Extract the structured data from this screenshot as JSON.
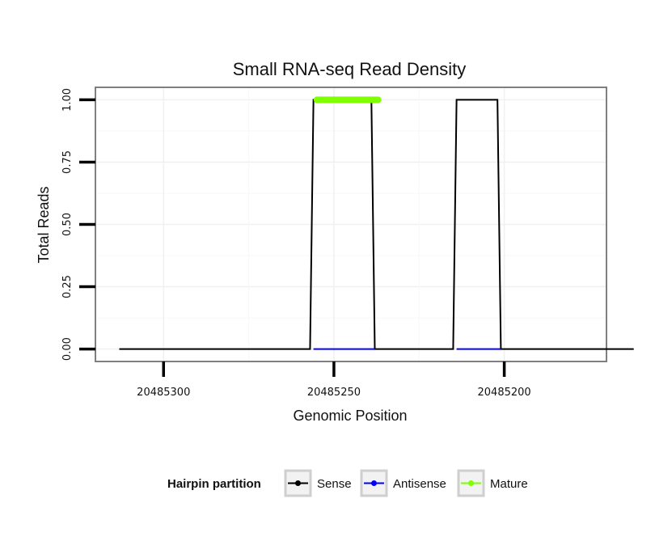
{
  "chart_data": {
    "type": "line",
    "title": "Small RNA-seq Read Density",
    "xlabel": "Genomic Position",
    "ylabel": "Total Reads",
    "x_reversed": true,
    "xlim": [
      20485320,
      20485170
    ],
    "ylim": [
      -0.05,
      1.05
    ],
    "x_ticks": [
      20485300,
      20485250,
      20485200
    ],
    "x_tick_labels": [
      "20485300",
      "20485250",
      "20485200"
    ],
    "y_ticks": [
      0.0,
      0.25,
      0.5,
      0.75,
      1.0
    ],
    "y_tick_labels": [
      "0.00",
      "0.25",
      "0.50",
      "0.75",
      "1.00"
    ],
    "grid": true,
    "legend": {
      "title": "Hairpin partition",
      "position": "bottom",
      "entries": [
        "Sense",
        "Antisense",
        "Mature"
      ]
    },
    "series": [
      {
        "name": "Sense",
        "color": "#000000",
        "x": [
          20485313,
          20485257,
          20485256,
          20485239,
          20485238,
          20485215,
          20485214,
          20485202,
          20485201,
          20485162
        ],
        "y": [
          0,
          0,
          1,
          1,
          0,
          0,
          1,
          1,
          0,
          0
        ]
      },
      {
        "name": "Antisense",
        "color": "#0000ff",
        "x": [
          20485256,
          20485238,
          20485214,
          20485201
        ],
        "y": [
          0,
          0,
          0,
          0
        ],
        "segments": [
          [
            0,
            1
          ],
          [
            2,
            3
          ]
        ]
      },
      {
        "name": "Mature",
        "color": "#7fff00",
        "x": [
          20485255,
          20485237
        ],
        "y": [
          1,
          1
        ]
      }
    ]
  }
}
